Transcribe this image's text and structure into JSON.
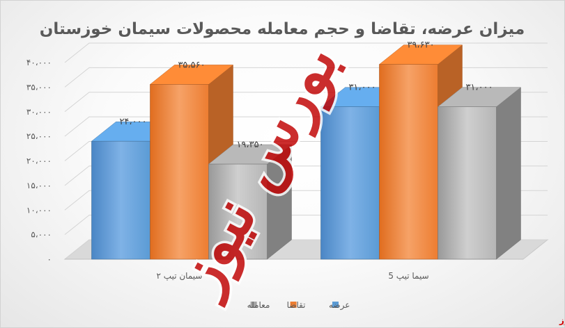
{
  "chart_data": {
    "type": "bar",
    "title": "میزان عرضه، تقاضا و حجم معامله محصولات سیمان خوزستان",
    "categories": [
      "سیمان تیپ ۲",
      "سیما تیپ 5"
    ],
    "series": [
      {
        "name": "عرضه",
        "values": [
          24000,
          31000
        ],
        "labels": [
          "۲۴،۰۰۰",
          "۳۱،۰۰۰"
        ],
        "color": "#5b9bd5"
      },
      {
        "name": "تقاضا",
        "values": [
          35560,
          39630
        ],
        "labels": [
          "۳۵،۵۶۰",
          "۳۹،۶۳۰"
        ],
        "color": "#ed7d31"
      },
      {
        "name": "معامله",
        "values": [
          19350,
          31000
        ],
        "labels": [
          "۱۹،۳۵۰",
          "۳۱،۰۰۰"
        ],
        "color": "#a5a5a5"
      }
    ],
    "ylim": [
      0,
      40000
    ],
    "yticks": [
      0,
      5000,
      10000,
      15000,
      20000,
      25000,
      30000,
      35000,
      40000
    ],
    "ytick_labels": [
      "۰",
      "۵،۰۰۰",
      "۱۰،۰۰۰",
      "۱۵،۰۰۰",
      "۲۰،۰۰۰",
      "۲۵،۰۰۰",
      "۳۰،۰۰۰",
      "۳۵،۰۰۰",
      "۴۰،۰۰۰"
    ],
    "grid": true,
    "three_d": true,
    "legend_position": "bottom"
  },
  "watermark": {
    "text": "بورس نیوز",
    "color": "#c00000"
  },
  "source_label": "بورس نیوز"
}
